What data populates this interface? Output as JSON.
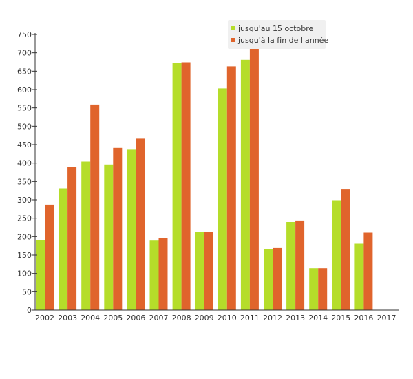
{
  "chart_data": {
    "type": "bar",
    "categories": [
      "2002",
      "2003",
      "2004",
      "2005",
      "2006",
      "2007",
      "2008",
      "2009",
      "2010",
      "2011",
      "2012",
      "2013",
      "2014",
      "2015",
      "2016",
      "2017"
    ],
    "series": [
      {
        "name": "jusqu'au 15 octobre",
        "color": "#b5dd2a",
        "values": [
          191,
          331,
          404,
          396,
          438,
          189,
          673,
          213,
          603,
          681,
          166,
          240,
          114,
          299,
          181,
          0
        ]
      },
      {
        "name": "jusqu'à la fin de l'année",
        "color": "#e0642c",
        "values": [
          287,
          389,
          559,
          441,
          468,
          195,
          674,
          213,
          663,
          712,
          169,
          244,
          114,
          328,
          211,
          0
        ]
      }
    ],
    "yticks": [
      0,
      50,
      100,
      150,
      200,
      250,
      300,
      350,
      400,
      450,
      500,
      550,
      600,
      650,
      700,
      750
    ],
    "ylim": [
      0,
      750
    ],
    "xlabel": "",
    "ylabel": "",
    "title": "",
    "legend_position": "top-right",
    "grid": false
  }
}
